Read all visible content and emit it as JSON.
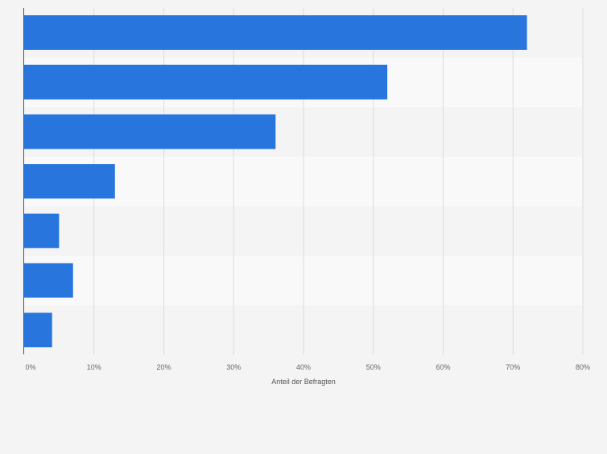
{
  "chart_data": {
    "type": "bar",
    "orientation": "horizontal",
    "categories": [
      "",
      "",
      "",
      "",
      "",
      "",
      ""
    ],
    "values": [
      72,
      52,
      36,
      13,
      5,
      7,
      4
    ],
    "unit": "%",
    "title": "",
    "xlabel": "Anteil der Befragten",
    "ylabel": "",
    "xlim": [
      0,
      80
    ],
    "xticks": [
      "0%",
      "10%",
      "20%",
      "30%",
      "40%",
      "50%",
      "60%",
      "70%",
      "80%"
    ],
    "grid": "vertical",
    "bar_color": "#2876dd",
    "band_colors": [
      "#f4f4f4",
      "#f9f9f9"
    ]
  }
}
